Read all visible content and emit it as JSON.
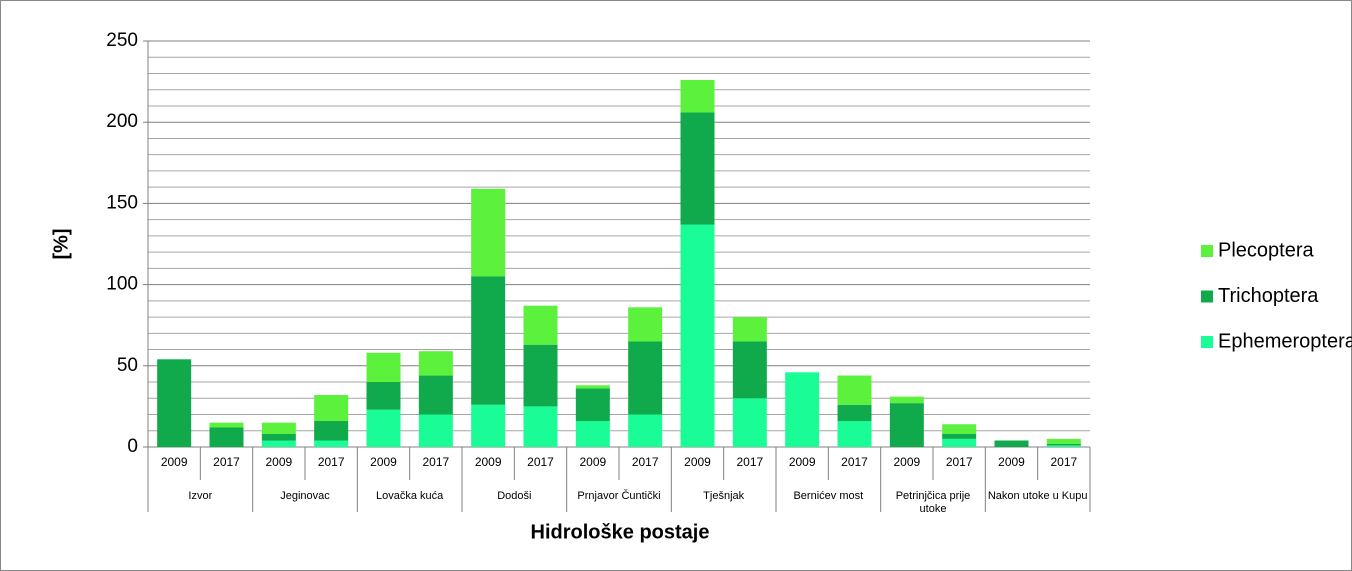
{
  "chart_data": {
    "type": "stacked_bar",
    "x_label": "Hidrološke postaje",
    "y_label": "[%]",
    "categories": [
      "2009",
      "2017",
      "2009",
      "2017",
      "2009",
      "2017",
      "2009",
      "2017",
      "2009",
      "2017",
      "2009",
      "2017",
      "2009",
      "2017",
      "2009",
      "2017",
      "2009",
      "2017"
    ],
    "groups": [
      "Izvor",
      "Jeginovac",
      "Lovačka kuća",
      "Dodoši",
      "Prnjavor Čuntički",
      "Tješnjak",
      "Bernićev most",
      "Petrinjčica prije utoke",
      "Nakon utoke u Kupu"
    ],
    "series": [
      {
        "name": "Ephemeroptera",
        "color": "#1afc95",
        "values": [
          0,
          0,
          4,
          4,
          23,
          20,
          26,
          25,
          16,
          20,
          137,
          30,
          46,
          16,
          0,
          5,
          0,
          1
        ]
      },
      {
        "name": "Trichoptera",
        "color": "#10a94b",
        "values": [
          54,
          12,
          4,
          12,
          17,
          24,
          79,
          38,
          20,
          45,
          69,
          35,
          0,
          10,
          27,
          3,
          4,
          1
        ]
      },
      {
        "name": "Plecoptera",
        "color": "#5cf13c",
        "values": [
          0,
          3,
          7,
          16,
          18,
          15,
          54,
          24,
          2,
          21,
          20,
          15,
          0,
          18,
          4,
          6,
          0,
          3
        ]
      }
    ],
    "ylim": [
      0,
      250
    ],
    "yticks": [
      0,
      50,
      100,
      150,
      200,
      250
    ],
    "y_minor_ticks": [
      10,
      20,
      30,
      40,
      60,
      70,
      80,
      90,
      110,
      120,
      130,
      140,
      160,
      170,
      180,
      190,
      210,
      220,
      230,
      240
    ],
    "grid": true,
    "legend": "right"
  }
}
